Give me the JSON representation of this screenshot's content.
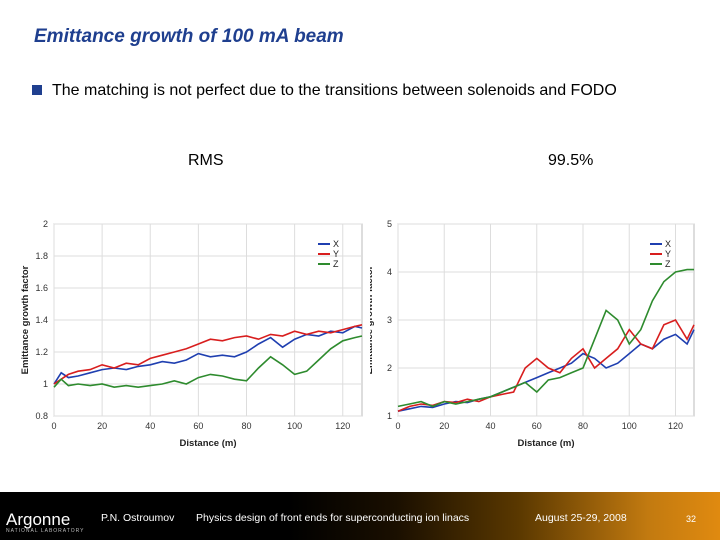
{
  "slide": {
    "title": "Emittance growth of 100 mA beam",
    "bullet": "The matching is not perfect due to the transitions between solenoids and FODO",
    "label_left": "RMS",
    "label_right": "99.5%"
  },
  "footer": {
    "org": "Argonne",
    "org_sub": "NATIONAL LABORATORY",
    "author": "P.N. Ostroumov",
    "talk": "Physics design of front ends for superconducting ion linacs",
    "date": "August 25-29, 2008",
    "page": "32"
  },
  "colors": {
    "x": "#1f3fb0",
    "y": "#d81e1e",
    "z": "#2e8b2e",
    "title": "#1f3f8f"
  },
  "chart_data": [
    {
      "type": "line",
      "title": "",
      "xlabel": "Distance (m)",
      "ylabel": "Emittance growth factor",
      "xlim": [
        0,
        128
      ],
      "ylim": [
        0.8,
        2
      ],
      "xticks": [
        0,
        20,
        40,
        60,
        80,
        100,
        120
      ],
      "yticks": [
        0.8,
        1,
        1.2,
        1.4,
        1.6,
        1.8,
        2
      ],
      "ytick_labels": [
        "0.8",
        "1",
        "1.2",
        "1.4",
        "1.6",
        "1.8",
        "2"
      ],
      "grid": true,
      "legend": "top-right",
      "series": [
        {
          "name": "X",
          "color": "#1f3fb0",
          "x": [
            0,
            3,
            6,
            10,
            15,
            20,
            25,
            30,
            35,
            40,
            45,
            50,
            55,
            60,
            65,
            70,
            75,
            80,
            85,
            90,
            95,
            100,
            105,
            110,
            115,
            120,
            125,
            128
          ],
          "y": [
            1.0,
            1.07,
            1.04,
            1.05,
            1.07,
            1.09,
            1.1,
            1.09,
            1.11,
            1.12,
            1.14,
            1.13,
            1.15,
            1.19,
            1.17,
            1.18,
            1.17,
            1.2,
            1.25,
            1.29,
            1.23,
            1.28,
            1.31,
            1.3,
            1.33,
            1.32,
            1.36,
            1.35
          ]
        },
        {
          "name": "Y",
          "color": "#d81e1e",
          "x": [
            0,
            3,
            6,
            10,
            15,
            20,
            25,
            30,
            35,
            40,
            45,
            50,
            55,
            60,
            65,
            70,
            75,
            80,
            85,
            90,
            95,
            100,
            105,
            110,
            115,
            120,
            125,
            128
          ],
          "y": [
            1.0,
            1.03,
            1.06,
            1.08,
            1.09,
            1.12,
            1.1,
            1.13,
            1.12,
            1.16,
            1.18,
            1.2,
            1.22,
            1.25,
            1.28,
            1.27,
            1.29,
            1.3,
            1.28,
            1.31,
            1.3,
            1.33,
            1.31,
            1.33,
            1.32,
            1.34,
            1.36,
            1.37
          ]
        },
        {
          "name": "Z",
          "color": "#2e8b2e",
          "x": [
            0,
            3,
            6,
            10,
            15,
            20,
            25,
            30,
            35,
            40,
            45,
            50,
            55,
            60,
            65,
            70,
            75,
            80,
            85,
            90,
            95,
            100,
            105,
            110,
            115,
            120,
            125,
            128
          ],
          "y": [
            0.98,
            1.03,
            0.99,
            1.0,
            0.99,
            1.0,
            0.98,
            0.99,
            0.98,
            0.99,
            1.0,
            1.02,
            1.0,
            1.04,
            1.06,
            1.05,
            1.03,
            1.02,
            1.1,
            1.17,
            1.12,
            1.06,
            1.08,
            1.15,
            1.22,
            1.27,
            1.29,
            1.3
          ]
        }
      ]
    },
    {
      "type": "line",
      "title": "",
      "xlabel": "Distance (m)",
      "ylabel": "Emittance growth factor",
      "xlim": [
        0,
        128
      ],
      "ylim": [
        1,
        5
      ],
      "xticks": [
        0,
        20,
        40,
        60,
        80,
        100,
        120
      ],
      "yticks": [
        1,
        2,
        3,
        4,
        5
      ],
      "ytick_labels": [
        "1",
        "2",
        "3",
        "4",
        "5"
      ],
      "grid": true,
      "legend": "top-right",
      "series": [
        {
          "name": "X",
          "color": "#1f3fb0",
          "x": [
            0,
            5,
            10,
            15,
            20,
            25,
            30,
            35,
            40,
            45,
            50,
            55,
            60,
            65,
            70,
            75,
            80,
            85,
            90,
            95,
            100,
            105,
            110,
            115,
            120,
            125,
            128
          ],
          "y": [
            1.1,
            1.15,
            1.2,
            1.18,
            1.25,
            1.3,
            1.28,
            1.35,
            1.4,
            1.5,
            1.6,
            1.7,
            1.8,
            1.9,
            2.0,
            2.1,
            2.3,
            2.2,
            2.0,
            2.1,
            2.3,
            2.5,
            2.4,
            2.6,
            2.7,
            2.5,
            2.8
          ]
        },
        {
          "name": "Y",
          "color": "#d81e1e",
          "x": [
            0,
            5,
            10,
            15,
            20,
            25,
            30,
            35,
            40,
            45,
            50,
            55,
            60,
            65,
            70,
            75,
            80,
            85,
            90,
            95,
            100,
            105,
            110,
            115,
            120,
            125,
            128
          ],
          "y": [
            1.1,
            1.2,
            1.25,
            1.22,
            1.3,
            1.28,
            1.35,
            1.3,
            1.4,
            1.45,
            1.5,
            2.0,
            2.2,
            2.0,
            1.9,
            2.2,
            2.4,
            2.0,
            2.2,
            2.4,
            2.8,
            2.5,
            2.4,
            2.9,
            3.0,
            2.6,
            2.9
          ]
        },
        {
          "name": "Z",
          "color": "#2e8b2e",
          "x": [
            0,
            5,
            10,
            15,
            20,
            25,
            30,
            35,
            40,
            45,
            50,
            55,
            60,
            65,
            70,
            75,
            80,
            85,
            90,
            95,
            100,
            105,
            110,
            115,
            120,
            125,
            128
          ],
          "y": [
            1.2,
            1.25,
            1.3,
            1.2,
            1.3,
            1.25,
            1.3,
            1.35,
            1.4,
            1.5,
            1.6,
            1.7,
            1.5,
            1.75,
            1.8,
            1.9,
            2.0,
            2.6,
            3.2,
            3.0,
            2.5,
            2.8,
            3.4,
            3.8,
            4.0,
            4.05,
            4.05
          ]
        }
      ]
    }
  ]
}
